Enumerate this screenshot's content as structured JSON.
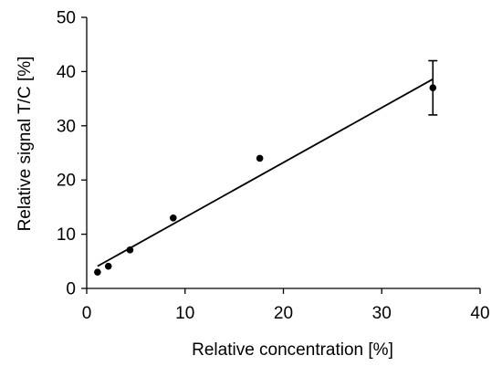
{
  "chart_data": {
    "type": "scatter",
    "title": "",
    "xlabel": "Relative concentration [%]",
    "ylabel": "Relative signal T/C [%]",
    "xlim": [
      0,
      40
    ],
    "ylim": [
      0,
      50
    ],
    "x_ticks": [
      0,
      10,
      20,
      30,
      40
    ],
    "y_ticks": [
      0,
      10,
      20,
      30,
      40,
      50
    ],
    "grid": false,
    "legend": "none",
    "series": [
      {
        "x": [
          1.1,
          2.2,
          4.4,
          8.8,
          17.6,
          35.2
        ],
        "y": [
          3,
          4.1,
          7.1,
          13,
          24,
          37
        ],
        "error_bars": [
          null,
          null,
          null,
          null,
          null,
          [
            32,
            42
          ]
        ]
      }
    ],
    "trendline": {
      "type": "linear",
      "x_start": 1.1,
      "x_end": 35.2,
      "y_start": 4.1,
      "y_end": 38.6
    },
    "colors": {
      "marker": "#000000",
      "axis": "#000000",
      "line": "#000000"
    }
  }
}
